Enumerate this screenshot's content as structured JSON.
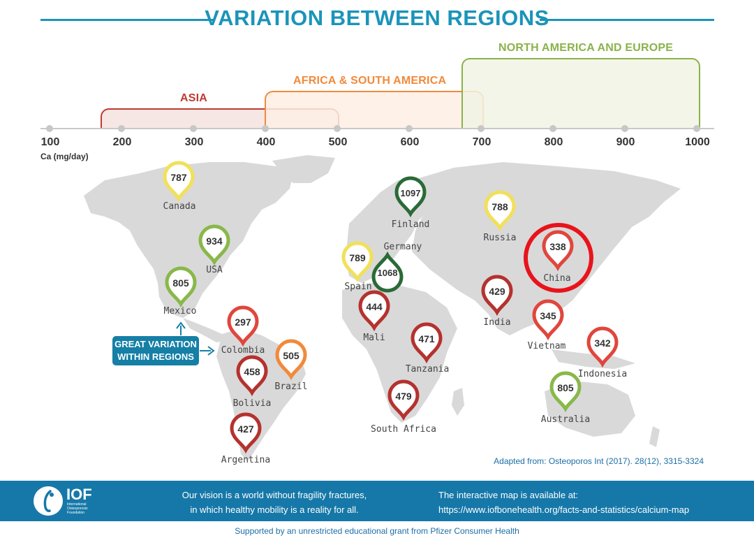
{
  "title": "VARIATION BETWEEN REGIONS",
  "axis": {
    "unit": "Ca (mg/day)",
    "ticks": [
      "100",
      "200",
      "300",
      "400",
      "500",
      "600",
      "700",
      "800",
      "900",
      "1000"
    ]
  },
  "regions": [
    {
      "label": "ASIA",
      "range": [
        170,
        500
      ],
      "color": "#bf3a32",
      "fill": "#f6e6e4"
    },
    {
      "label": "AFRICA & SOUTH AMERICA",
      "range": [
        400,
        700
      ],
      "color": "#f18a3b",
      "fill": "#fdefe4"
    },
    {
      "label": "NORTH AMERICA AND EUROPE",
      "range": [
        670,
        1000
      ],
      "color": "#8ab34a",
      "fill": "#f1f3e4"
    }
  ],
  "countries": [
    {
      "name": "Canada",
      "value": "787",
      "color": "#f1e05a"
    },
    {
      "name": "USA",
      "value": "934",
      "color": "#89b84a"
    },
    {
      "name": "Mexico",
      "value": "805",
      "color": "#89b84a"
    },
    {
      "name": "Colombia",
      "value": "297",
      "color": "#e0463d"
    },
    {
      "name": "Brazil",
      "value": "505",
      "color": "#f18a3b"
    },
    {
      "name": "Bolivia",
      "value": "458",
      "color": "#b4322f"
    },
    {
      "name": "Argentina",
      "value": "427",
      "color": "#b4322f"
    },
    {
      "name": "Finland",
      "value": "1097",
      "color": "#2a6a36"
    },
    {
      "name": "Germany",
      "value": "1068",
      "color": "#2a6a36"
    },
    {
      "name": "Spain",
      "value": "789",
      "color": "#f1e05a"
    },
    {
      "name": "Russia",
      "value": "788",
      "color": "#f1e05a"
    },
    {
      "name": "China",
      "value": "338",
      "color": "#e0463d"
    },
    {
      "name": "India",
      "value": "429",
      "color": "#b4322f"
    },
    {
      "name": "Mali",
      "value": "444",
      "color": "#b4322f"
    },
    {
      "name": "Tanzania",
      "value": "471",
      "color": "#b4322f"
    },
    {
      "name": "South Africa",
      "value": "479",
      "color": "#b4322f"
    },
    {
      "name": "Vietnam",
      "value": "345",
      "color": "#e0463d"
    },
    {
      "name": "Indonesia",
      "value": "342",
      "color": "#e0463d"
    },
    {
      "name": "Australia",
      "value": "805",
      "color": "#89b84a"
    }
  ],
  "highlight_color": "#e8141b",
  "callout": {
    "line1": "GREAT VARIATION",
    "line2": "WITHIN REGIONS"
  },
  "source": "Adapted from: Osteoporos Int (2017). 28(12), 3315-3324",
  "footer": {
    "logo": "IOF",
    "logo_sub": "International Osteoporosis Foundation",
    "vision_line1": "Our vision is a world without fragility fractures,",
    "vision_line2": "in which healthy mobility is a reality for all.",
    "map_line1": "The interactive map is available at:",
    "map_line2": "https://www.iofbonehealth.org/facts-and-statistics/calcium-map"
  },
  "support": "Supported by an unrestricted educational grant from Pfizer Consumer Health"
}
